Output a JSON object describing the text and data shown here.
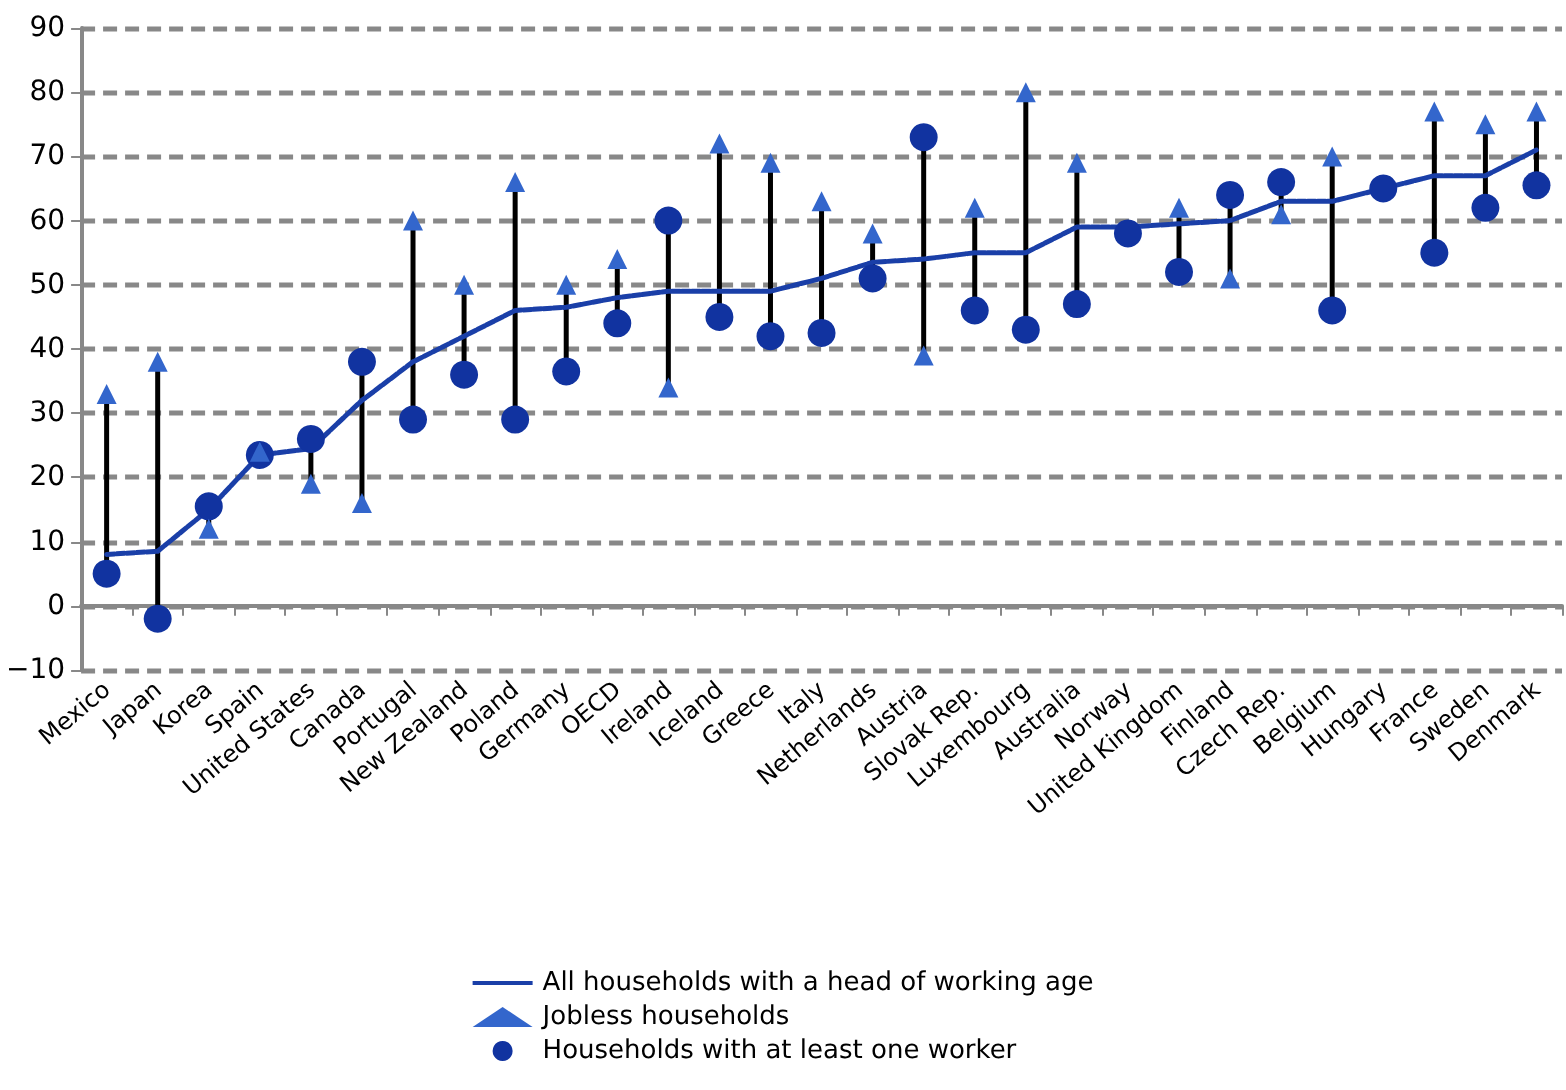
{
  "chart_data": {
    "type": "scatter",
    "categories": [
      "Mexico",
      "Japan",
      "Korea",
      "Spain",
      "United States",
      "Canada",
      "Portugal",
      "New Zealand",
      "Poland",
      "Germany",
      "OECD",
      "Ireland",
      "Iceland",
      "Greece",
      "Italy",
      "Netherlands",
      "Austria",
      "Slovak Rep.",
      "Luxembourg",
      "Australia",
      "Norway",
      "United Kingdom",
      "Finland",
      "Czech Rep.",
      "Belgium",
      "Hungary",
      "France",
      "Sweden",
      "Denmark"
    ],
    "series": [
      {
        "name": "All households with a head of working age",
        "type": "line",
        "marker": "none",
        "line_style": "dashed",
        "color": "#1a3fa8",
        "values": [
          8,
          8.5,
          15,
          23.5,
          24.5,
          32,
          38,
          42,
          46,
          46.5,
          48,
          49,
          49,
          49,
          51,
          53.5,
          54,
          55,
          55,
          59,
          59,
          59.5,
          60,
          63,
          63,
          65,
          67,
          67,
          71
        ]
      },
      {
        "name": "Jobless households",
        "marker": "triangle",
        "color": "#3366cc",
        "values": [
          33,
          38,
          12,
          24,
          19,
          16,
          60,
          50,
          66,
          50,
          54,
          34,
          72,
          69,
          63,
          58,
          39,
          62,
          80,
          69,
          null,
          62,
          51,
          61,
          70,
          null,
          77,
          75,
          77
        ]
      },
      {
        "name": "Households with at least one worker",
        "marker": "circle",
        "color": "#1133a0",
        "values": [
          5,
          -2,
          15.5,
          23.5,
          26,
          38,
          29,
          36,
          29,
          36.5,
          44,
          60,
          45,
          42,
          42.5,
          51,
          73,
          46,
          43,
          47,
          58,
          52,
          64,
          66,
          46,
          65,
          55,
          62,
          65.5
        ]
      }
    ],
    "ylim": [
      -10,
      90
    ],
    "yticks": [
      -10,
      0,
      10,
      20,
      30,
      40,
      50,
      60,
      70,
      80,
      90
    ],
    "grid": "y",
    "legend": "bottom"
  }
}
